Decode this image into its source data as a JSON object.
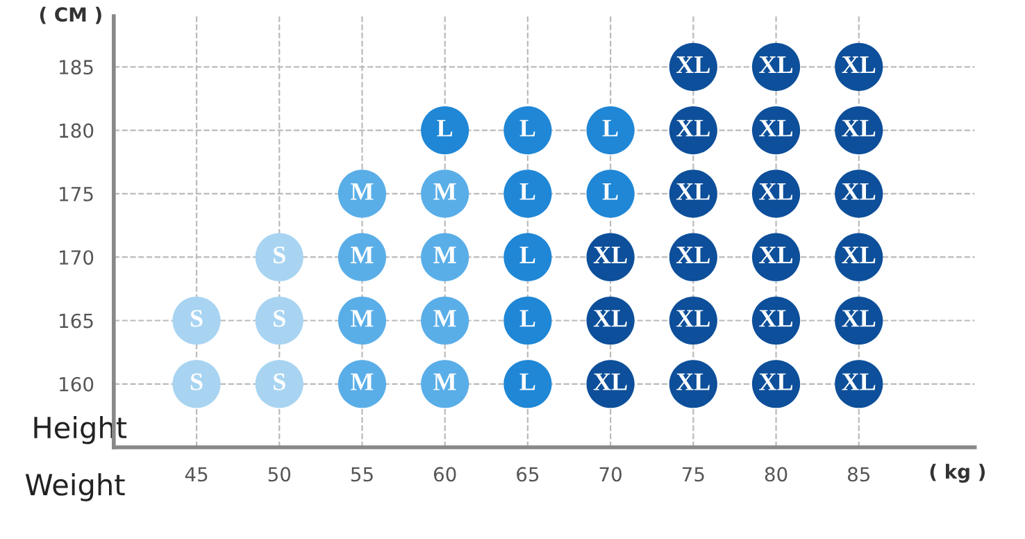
{
  "chart_data": {
    "type": "scatter",
    "xlabel": "Weight",
    "ylabel": "Height",
    "annotations": [
      "( CM )",
      "( kg )"
    ],
    "xlim": [
      40,
      92
    ],
    "ylim": [
      155,
      189
    ],
    "xticks": [
      45,
      50,
      55,
      60,
      65,
      70,
      75,
      80,
      85
    ],
    "yticks": [
      160,
      165,
      170,
      175,
      180,
      185
    ],
    "grid": true,
    "line_style": "dashed",
    "marker": "circle",
    "legend": false,
    "series": [
      {
        "name": "S",
        "color": "#a8d4f2",
        "x": [
          45,
          45,
          50,
          50,
          50
        ],
        "values": [
          160,
          165,
          160,
          165,
          170
        ]
      },
      {
        "name": "M",
        "color": "#5aaee8",
        "x": [
          55,
          55,
          55,
          55,
          60,
          60,
          60,
          60
        ],
        "values": [
          160,
          165,
          170,
          175,
          160,
          165,
          170,
          175
        ]
      },
      {
        "name": "L",
        "color": "#1f87d6",
        "x": [
          60,
          65,
          65,
          65,
          65,
          65,
          70,
          70
        ],
        "values": [
          180,
          160,
          165,
          170,
          175,
          180,
          175,
          180
        ]
      },
      {
        "name": "XL",
        "color": "#0d4f9a",
        "x": [
          70,
          70,
          70,
          75,
          75,
          75,
          75,
          75,
          75,
          80,
          80,
          80,
          80,
          80,
          80,
          85,
          85,
          85,
          85,
          85,
          85
        ],
        "values": [
          160,
          165,
          170,
          160,
          165,
          170,
          175,
          180,
          185,
          160,
          165,
          170,
          175,
          180,
          185,
          160,
          165,
          170,
          175,
          180,
          185
        ]
      }
    ]
  }
}
